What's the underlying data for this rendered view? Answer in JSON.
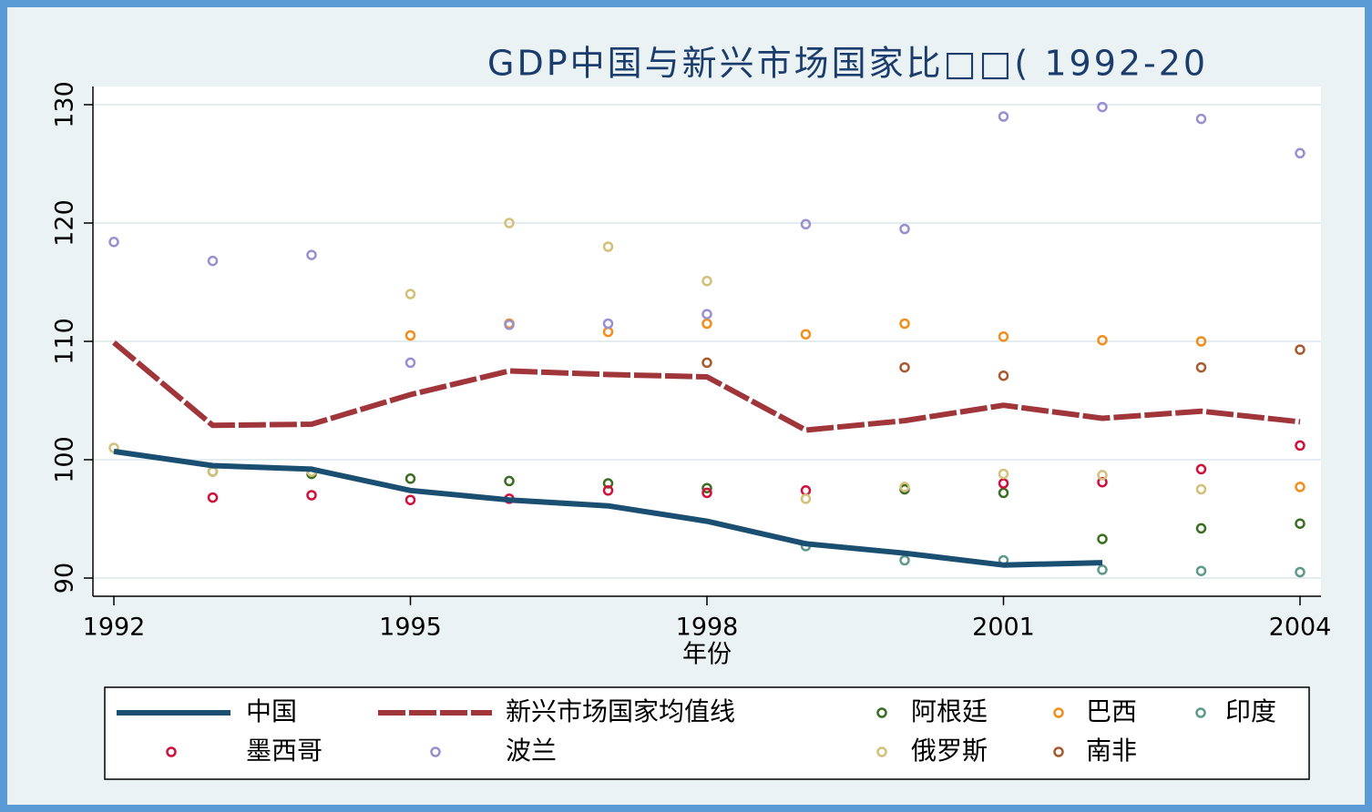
{
  "chart_data": {
    "type": "line",
    "title": "GDP中国与新兴市场国家比□□( 1992-20",
    "x_label": "年份",
    "x": [
      1992,
      1993,
      1994,
      1995,
      1996,
      1997,
      1998,
      1999,
      2000,
      2001,
      2002,
      2003,
      2004
    ],
    "xlim": [
      1992,
      2004
    ],
    "xticks": [
      1992,
      1995,
      1998,
      2001,
      2004
    ],
    "ylim": [
      90,
      130
    ],
    "yticks": [
      90,
      100,
      110,
      120,
      130
    ],
    "grid": true,
    "series": [
      {
        "name": "中国",
        "type": "line",
        "color": "#1a4f72",
        "values": [
          100.7,
          99.5,
          99.2,
          97.4,
          96.6,
          96.1,
          94.8,
          92.9,
          92.1,
          91.1,
          91.3,
          null,
          null
        ]
      },
      {
        "name": "新兴市场国家均值线",
        "type": "line",
        "dashed": true,
        "color": "#a0353a",
        "values": [
          109.9,
          102.9,
          103.0,
          105.5,
          107.5,
          107.2,
          107.0,
          102.5,
          103.3,
          104.6,
          103.5,
          104.1,
          103.2
        ]
      },
      {
        "name": "阿根廷",
        "type": "scatter",
        "color": "#3b6e22",
        "values": [
          null,
          99.0,
          98.8,
          98.4,
          98.2,
          98.0,
          97.6,
          null,
          97.5,
          97.2,
          93.3,
          94.2,
          94.6
        ]
      },
      {
        "name": "巴西",
        "type": "scatter",
        "color": "#f28e1c",
        "values": [
          null,
          null,
          null,
          110.5,
          111.5,
          110.8,
          111.5,
          110.6,
          111.5,
          110.4,
          110.1,
          110.0,
          97.7
        ]
      },
      {
        "name": "印度",
        "type": "scatter",
        "color": "#5e9a8c",
        "values": [
          null,
          null,
          null,
          null,
          null,
          null,
          null,
          92.7,
          91.5,
          91.5,
          90.7,
          90.6,
          90.5
        ]
      },
      {
        "name": "墨西哥",
        "type": "scatter",
        "color": "#d0103a",
        "values": [
          null,
          96.8,
          97.0,
          96.6,
          96.7,
          97.4,
          97.2,
          97.4,
          null,
          98.0,
          98.1,
          99.2,
          101.2
        ]
      },
      {
        "name": "波兰",
        "type": "scatter",
        "color": "#9a8fd0",
        "values": [
          118.4,
          116.8,
          117.3,
          108.2,
          111.4,
          111.5,
          112.3,
          119.9,
          119.5,
          129.0,
          129.8,
          128.8,
          125.9
        ]
      },
      {
        "name": "俄罗斯",
        "type": "scatter",
        "color": "#d4c07a",
        "values": [
          101.0,
          99.0,
          99.0,
          114.0,
          120.0,
          118.0,
          115.1,
          96.7,
          97.7,
          98.8,
          98.7,
          97.5,
          null
        ]
      },
      {
        "name": "南非",
        "type": "scatter",
        "color": "#a85a2e",
        "values": [
          null,
          null,
          null,
          null,
          null,
          null,
          108.2,
          null,
          107.8,
          107.1,
          null,
          107.8,
          109.3
        ]
      }
    ]
  }
}
